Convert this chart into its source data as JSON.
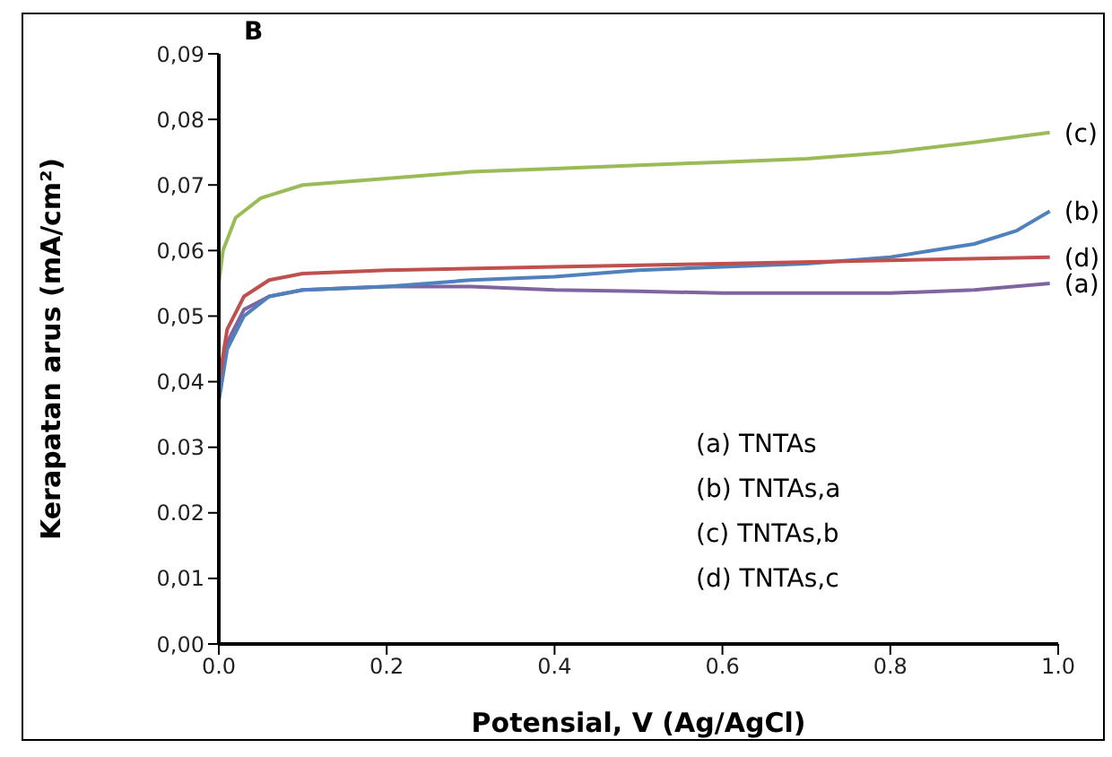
{
  "chart_data": {
    "type": "line",
    "xlabel": "Potensial, V (Ag/AgCl)",
    "ylabel": "Kerapatan arus (mA/cm²)",
    "xlim": [
      0,
      1
    ],
    "xticks": [
      {
        "value": 0,
        "label": "0.0"
      },
      {
        "value": 0.2,
        "label": "0.2"
      },
      {
        "value": 0.4,
        "label": "0.4"
      },
      {
        "value": 0.6,
        "label": "0.6"
      },
      {
        "value": 0.8,
        "label": "0.8"
      },
      {
        "value": 1,
        "label": "1.0"
      }
    ],
    "ylim": [
      0,
      0.09
    ],
    "yticks": [
      {
        "value": 0,
        "label": "0,00"
      },
      {
        "value": 0.01,
        "label": "0,01"
      },
      {
        "value": 0.02,
        "label": "0.02"
      },
      {
        "value": 0.03,
        "label": "0.03"
      },
      {
        "value": 0.04,
        "label": "0,04"
      },
      {
        "value": 0.05,
        "label": "0,05"
      },
      {
        "value": 0.06,
        "label": "0,06"
      },
      {
        "value": 0.07,
        "label": "0,07"
      },
      {
        "value": 0.08,
        "label": "0,08"
      },
      {
        "value": 0.09,
        "label": "0,09"
      }
    ],
    "marker": "none",
    "line_style": "solid",
    "series": [
      {
        "name": "(a)",
        "color": "#8064a2",
        "x": [
          0,
          0.01,
          0.03,
          0.06,
          0.1,
          0.2,
          0.3,
          0.4,
          0.5,
          0.6,
          0.7,
          0.8,
          0.9,
          0.99
        ],
        "values": [
          0.04,
          0.046,
          0.051,
          0.053,
          0.054,
          0.0545,
          0.0545,
          0.054,
          0.0538,
          0.0535,
          0.0535,
          0.0535,
          0.054,
          0.055
        ]
      },
      {
        "name": "(b)",
        "color": "#4f81bd",
        "x": [
          0,
          0.01,
          0.03,
          0.06,
          0.1,
          0.2,
          0.3,
          0.4,
          0.5,
          0.6,
          0.7,
          0.8,
          0.85,
          0.9,
          0.95,
          0.99
        ],
        "values": [
          0.037,
          0.045,
          0.05,
          0.053,
          0.054,
          0.0545,
          0.0555,
          0.056,
          0.057,
          0.0575,
          0.058,
          0.059,
          0.06,
          0.061,
          0.063,
          0.066
        ]
      },
      {
        "name": "(c)",
        "color": "#9bbb59",
        "x": [
          0,
          0.005,
          0.02,
          0.05,
          0.1,
          0.2,
          0.3,
          0.4,
          0.5,
          0.6,
          0.7,
          0.8,
          0.9,
          0.99
        ],
        "values": [
          0.055,
          0.06,
          0.065,
          0.068,
          0.07,
          0.071,
          0.072,
          0.0725,
          0.073,
          0.0735,
          0.074,
          0.075,
          0.0765,
          0.078
        ]
      },
      {
        "name": "(d)",
        "color": "#c0504d",
        "x": [
          0,
          0.01,
          0.03,
          0.06,
          0.1,
          0.2,
          0.4,
          0.6,
          0.8,
          0.99
        ],
        "values": [
          0.04,
          0.048,
          0.053,
          0.0555,
          0.0565,
          0.057,
          0.0575,
          0.058,
          0.0585,
          0.059
        ]
      }
    ],
    "annotations": [
      "B",
      "(a) TNTAs",
      "(b) TNTAs,a",
      "(c) TNTAs,b",
      "(d) TNTAs,c"
    ]
  }
}
